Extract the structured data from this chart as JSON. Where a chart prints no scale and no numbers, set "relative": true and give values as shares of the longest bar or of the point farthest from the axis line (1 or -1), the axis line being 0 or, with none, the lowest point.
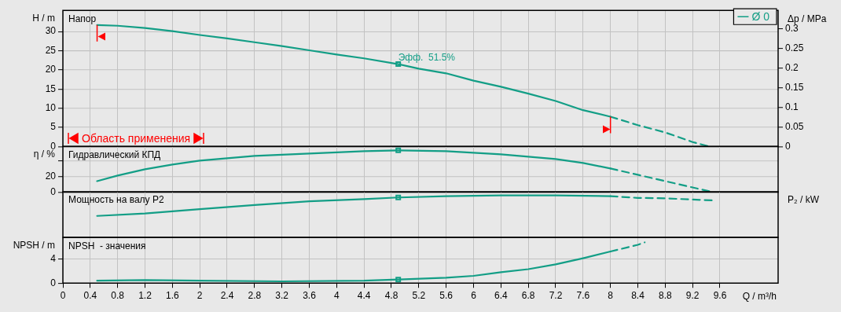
{
  "chart_data": [
    {
      "type": "line",
      "title": "Напор",
      "ylabel": "H / m",
      "y2label": "Δp / MPa",
      "xlim": [
        0,
        10.45
      ],
      "xticks": [
        0,
        0.4,
        0.8,
        1.2,
        1.6,
        2,
        2.4,
        2.8,
        3.2,
        3.6,
        4,
        4.4,
        4.8,
        5.2,
        5.6,
        6,
        6.4,
        6.8,
        7.2,
        7.6,
        8,
        8.4,
        8.8,
        9.2,
        9.6
      ],
      "ylim": [
        0,
        35.5
      ],
      "yticks": [
        0,
        5,
        10,
        15,
        20,
        25,
        30
      ],
      "y2lim": [
        0,
        0.346
      ],
      "y2ticks": [
        0,
        0.05,
        0.1,
        0.15,
        0.2,
        0.25,
        0.3
      ],
      "grid": true,
      "legend": "top right",
      "tick_labels": "y",
      "marker": "none",
      "series": [
        {
          "name": "Ø 0",
          "color": "#139e86",
          "line_style": "solid",
          "x": [
            0.5,
            0.8,
            1.2,
            1.6,
            2,
            2.4,
            2.8,
            3.2,
            3.6,
            4,
            4.4,
            4.9,
            5.2,
            5.6,
            6,
            6.4,
            6.8,
            7.2,
            7.6,
            8
          ],
          "values": [
            31.7,
            31.5,
            30.9,
            30.1,
            29.1,
            28.2,
            27.2,
            26.2,
            25.1,
            24,
            23,
            21.5,
            20.3,
            19.1,
            17.2,
            15.6,
            13.8,
            11.9,
            9.5,
            7.8
          ]
        },
        {
          "color": "#139e86",
          "line_style": "dashed",
          "x": [
            8,
            8.4,
            8.8,
            9.2,
            9.45
          ],
          "values": [
            7.8,
            5.6,
            3.7,
            1.2,
            0
          ]
        },
        {
          "type": "scatter",
          "color": "#139e86",
          "marker": "square",
          "x": [
            4.9
          ],
          "values": [
            21.5
          ]
        }
      ],
      "ref_lines": [
        {
          "axis": "x",
          "value": 0.5,
          "color": "#ff0000"
        },
        {
          "axis": "x",
          "value": 8,
          "color": "#ff0000"
        }
      ],
      "annotations": [
        "Область применения",
        {
          "text": "Эфф.  51.5%",
          "x": 4.9,
          "y": 21.5
        }
      ]
    },
    {
      "type": "line",
      "title": "Гидравлический КПД",
      "ylabel": "η / %",
      "xlim": [
        0,
        10.45
      ],
      "xticks": [
        0,
        0.4,
        0.8,
        1.2,
        1.6,
        2,
        2.4,
        2.8,
        3.2,
        3.6,
        4,
        4.4,
        4.8,
        5.2,
        5.6,
        6,
        6.4,
        6.8,
        7.2,
        7.6,
        8,
        8.4,
        8.8,
        9.2,
        9.6
      ],
      "ylim": [
        0,
        58
      ],
      "yticks": [
        0,
        20,
        {
          "value": 40,
          "label": null
        }
      ],
      "grid": true,
      "tick_labels": "y",
      "marker": "none",
      "series": [
        {
          "color": "#139e86",
          "line_style": "solid",
          "x": [
            0.5,
            0.8,
            1.2,
            1.6,
            2,
            2.8,
            3.6,
            4.4,
            4.9,
            5.6,
            6,
            6.4,
            6.8,
            7.2,
            7.6,
            8
          ],
          "values": [
            14,
            21,
            29,
            35,
            40,
            46,
            49,
            52,
            53,
            52,
            50,
            48,
            45,
            42,
            37,
            30
          ]
        },
        {
          "color": "#139e86",
          "line_style": "dashed",
          "x": [
            8,
            8.4,
            8.8,
            9.2,
            9.5
          ],
          "values": [
            30,
            22,
            14,
            6,
            0
          ]
        },
        {
          "type": "scatter",
          "color": "#139e86",
          "marker": "square",
          "x": [
            4.9
          ],
          "values": [
            53
          ]
        }
      ]
    },
    {
      "type": "line",
      "title": "Мощность на валу P2",
      "y2label": "P₂ / kW",
      "relative": true,
      "xlim": [
        0,
        10.45
      ],
      "xticks": [
        0,
        0.4,
        0.8,
        1.2,
        1.6,
        2,
        2.4,
        2.8,
        3.2,
        3.6,
        4,
        4.4,
        4.8,
        5.2,
        5.6,
        6,
        6.4,
        6.8,
        7.2,
        7.6,
        8,
        8.4,
        8.8,
        9.2,
        9.6
      ],
      "grid": "x",
      "tick_labels": false,
      "marker": "none",
      "series": [
        {
          "color": "#139e86",
          "line_style": "solid",
          "axis": "y2",
          "x": [
            0.5,
            1.2,
            2,
            2.8,
            3.6,
            4.4,
            4.9,
            5.6,
            6.4,
            7.2,
            8
          ],
          "values": [
            0.51,
            0.57,
            0.67,
            0.77,
            0.86,
            0.91,
            0.95,
            0.98,
            1,
            1,
            0.98
          ]
        },
        {
          "color": "#139e86",
          "line_style": "dashed",
          "axis": "y2",
          "x": [
            8,
            8.4,
            8.8,
            9.2,
            9.5
          ],
          "values": [
            0.98,
            0.94,
            0.93,
            0.9,
            0.88
          ]
        },
        {
          "type": "scatter",
          "color": "#139e86",
          "marker": "square",
          "axis": "y2",
          "x": [
            4.9
          ],
          "values": [
            0.95
          ]
        }
      ]
    },
    {
      "type": "line",
      "title": "NPSH  - значения",
      "ylabel": "NPSH / m",
      "xlabel": "Q / m³/h",
      "xlim": [
        0,
        10.45
      ],
      "xticks": [
        0,
        0.4,
        0.8,
        1.2,
        1.6,
        2,
        2.4,
        2.8,
        3.2,
        3.6,
        4,
        4.4,
        4.8,
        5.2,
        5.6,
        6,
        6.4,
        6.8,
        7.2,
        7.6,
        8,
        8.4,
        8.8,
        9.2,
        9.6
      ],
      "ylim": [
        0,
        7.5
      ],
      "yticks": [
        0,
        4
      ],
      "grid": true,
      "marker": "none",
      "series": [
        {
          "color": "#139e86",
          "line_style": "solid",
          "x": [
            0.5,
            1.2,
            2,
            3.2,
            4.4,
            4.9,
            5.6,
            6,
            6.4,
            6.8,
            7.2,
            7.6,
            8
          ],
          "values": [
            0.4,
            0.5,
            0.4,
            0.3,
            0.4,
            0.6,
            0.9,
            1.2,
            1.8,
            2.3,
            3.1,
            4.1,
            5.2
          ]
        },
        {
          "color": "#139e86",
          "line_style": "dashed",
          "x": [
            8,
            8.4,
            8.5
          ],
          "values": [
            5.2,
            6.3,
            6.7
          ]
        },
        {
          "type": "scatter",
          "color": "#139e86",
          "marker": "square",
          "x": [
            4.9
          ],
          "values": [
            0.6
          ]
        }
      ]
    }
  ]
}
